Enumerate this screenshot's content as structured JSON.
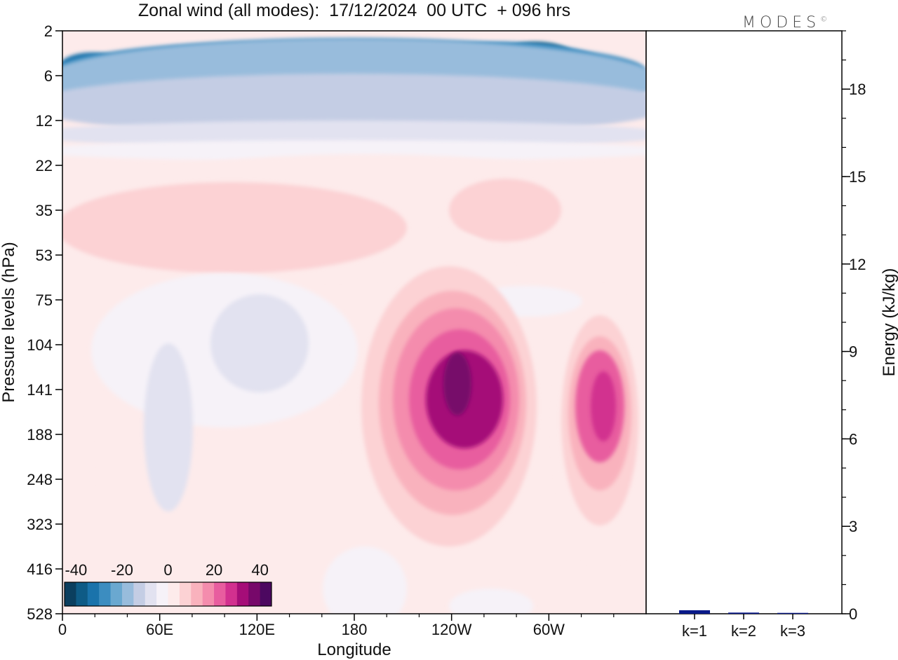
{
  "title": "Zonal wind (all modes):  17/12/2024  00 UTC  + 096 hrs",
  "logo_text": "MODES",
  "logo_mark": "©",
  "chart_data": [
    {
      "type": "heatmap",
      "title": "Zonal wind (all modes):  17/12/2024  00 UTC  + 096 hrs",
      "xlabel": "Longitude",
      "ylabel": "Pressure levels (hPa)",
      "x_ticks": [
        "0",
        "60E",
        "120E",
        "180",
        "120W",
        "60W"
      ],
      "y_ticks": [
        "2",
        "6",
        "12",
        "22",
        "35",
        "53",
        "75",
        "104",
        "141",
        "188",
        "248",
        "323",
        "416",
        "528"
      ],
      "colorbar": {
        "tick_labels": [
          "-40",
          "-20",
          "0",
          "20",
          "40"
        ],
        "range": [
          -45,
          45
        ],
        "colors": [
          "#0b3f5f",
          "#0e5b86",
          "#1a73ab",
          "#3c8dc0",
          "#6aa8d0",
          "#98bcdc",
          "#c4cde4",
          "#e2e2f0",
          "#f6f2f8",
          "#fdebeb",
          "#fcd2d4",
          "#f9b2bd",
          "#f48cad",
          "#e85d9f",
          "#d2308f",
          "#a50d78",
          "#77086a",
          "#4c0860"
        ]
      },
      "contours": [
        {
          "value": -38,
          "cx": 765,
          "cy": 85,
          "rx": 55,
          "ry": 25
        },
        {
          "value": -36,
          "cx": 225,
          "cy": 98,
          "rx": 20,
          "ry": 8
        },
        {
          "value": -33,
          "cx": 420,
          "cy": 98,
          "rx": 180,
          "ry": 18
        },
        {
          "value": -32,
          "cx": 130,
          "cy": 95,
          "rx": 45,
          "ry": 20
        },
        {
          "value": -30,
          "cx": 720,
          "cy": 100,
          "rx": 150,
          "ry": 40
        },
        {
          "value": -27,
          "cx": 500,
          "cy": 100,
          "rx": 420,
          "ry": 45
        },
        {
          "value": -20,
          "cx": 500,
          "cy": 115,
          "rx": 440,
          "ry": 60
        },
        {
          "value": -14,
          "cx": 500,
          "cy": 150,
          "rx": 460,
          "ry": 45
        },
        {
          "value": -8,
          "cx": 500,
          "cy": 192,
          "rx": 460,
          "ry": 20
        },
        {
          "value": -4,
          "cx": 500,
          "cy": 215,
          "rx": 460,
          "ry": 15
        },
        {
          "value": 4,
          "cx": 520,
          "cy": 310,
          "rx": 460,
          "ry": 90
        },
        {
          "value": 8,
          "cx": 330,
          "cy": 325,
          "rx": 250,
          "ry": 65
        },
        {
          "value": 8,
          "cx": 720,
          "cy": 300,
          "rx": 80,
          "ry": 45
        },
        {
          "value": 4,
          "cx": 640,
          "cy": 590,
          "rx": 150,
          "ry": 260
        },
        {
          "value": 4,
          "cx": 860,
          "cy": 610,
          "rx": 70,
          "ry": 200
        },
        {
          "value": 4,
          "cx": 100,
          "cy": 680,
          "rx": 30,
          "ry": 120
        },
        {
          "value": -4,
          "cx": 320,
          "cy": 500,
          "rx": 190,
          "ry": 110
        },
        {
          "value": -8,
          "cx": 370,
          "cy": 490,
          "rx": 70,
          "ry": 70
        },
        {
          "value": -6,
          "cx": 240,
          "cy": 610,
          "rx": 35,
          "ry": 120
        },
        {
          "value": -4,
          "cx": 750,
          "cy": 430,
          "rx": 80,
          "ry": 22
        },
        {
          "value": -4,
          "cx": 520,
          "cy": 840,
          "rx": 60,
          "ry": 60
        },
        {
          "value": -4,
          "cx": 700,
          "cy": 865,
          "rx": 60,
          "ry": 25
        },
        {
          "value": 8,
          "cx": 640,
          "cy": 580,
          "rx": 125,
          "ry": 200
        },
        {
          "value": 13,
          "cx": 645,
          "cy": 575,
          "rx": 105,
          "ry": 160
        },
        {
          "value": 18,
          "cx": 650,
          "cy": 570,
          "rx": 90,
          "ry": 130
        },
        {
          "value": 24,
          "cx": 655,
          "cy": 570,
          "rx": 72,
          "ry": 100
        },
        {
          "value": 30,
          "cx": 662,
          "cy": 570,
          "rx": 55,
          "ry": 70
        },
        {
          "value": 35,
          "cx": 652,
          "cy": 548,
          "rx": 20,
          "ry": 45
        },
        {
          "value": 8,
          "cx": 855,
          "cy": 600,
          "rx": 55,
          "ry": 150
        },
        {
          "value": 13,
          "cx": 855,
          "cy": 590,
          "rx": 45,
          "ry": 110
        },
        {
          "value": 20,
          "cx": 855,
          "cy": 580,
          "rx": 35,
          "ry": 80
        },
        {
          "value": 26,
          "cx": 860,
          "cy": 580,
          "rx": 18,
          "ry": 50
        }
      ]
    },
    {
      "type": "bar",
      "ylabel": "Energy (kJ/kg)",
      "categories": [
        "k=1",
        "k=2",
        "k=3"
      ],
      "values": [
        0.12,
        0.04,
        0.03
      ],
      "ylim": [
        0,
        20
      ],
      "y_ticks": [
        0,
        3,
        6,
        9,
        12,
        15,
        18
      ],
      "bar_color": "#0a1a8a"
    }
  ]
}
